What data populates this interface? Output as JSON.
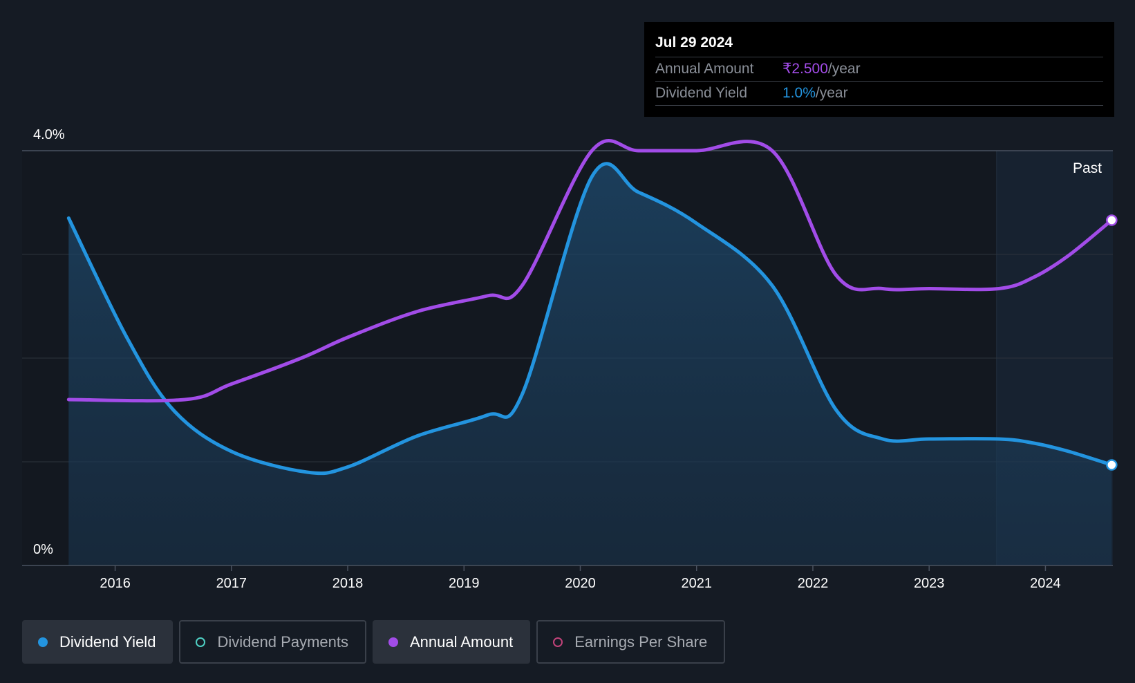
{
  "tooltip": {
    "date": "Jul 29 2024",
    "annual_amount_label": "Annual Amount",
    "annual_amount_value": "₹2.500",
    "dividend_yield_label": "Dividend Yield",
    "dividend_yield_value": "1.0%",
    "per_year": "/year"
  },
  "legend": [
    {
      "label": "Dividend Yield",
      "color": "#2394df",
      "active": true,
      "dot": "filled"
    },
    {
      "label": "Dividend Payments",
      "color": "#4fd1c5",
      "active": false,
      "dot": "hollow"
    },
    {
      "label": "Annual Amount",
      "color": "#a24ce8",
      "active": true,
      "dot": "filled"
    },
    {
      "label": "Earnings Per Share",
      "color": "#c2437a",
      "active": false,
      "dot": "hollow"
    }
  ],
  "colors": {
    "background": "#151b24",
    "plot_background": "#131820",
    "yield": "#2394df",
    "amount": "#a24ce8",
    "grid": "#2c333d"
  },
  "chart_data": {
    "type": "line",
    "y_axis": {
      "min": 0,
      "max": 4.0,
      "unit": "%",
      "tick_labels": [
        "0%",
        "4.0%"
      ],
      "gridlines": [
        0,
        1,
        2,
        3,
        4
      ]
    },
    "x_axis": {
      "ticks": [
        "2016",
        "2017",
        "2018",
        "2019",
        "2020",
        "2021",
        "2022",
        "2023",
        "2024"
      ]
    },
    "past_label": "Past",
    "past_region_start": 2023.58,
    "x_range": [
      2015.2,
      2024.58
    ],
    "series": [
      {
        "name": "Dividend Yield",
        "area": true,
        "points": [
          [
            2015.6,
            3.35
          ],
          [
            2016.1,
            2.2
          ],
          [
            2016.5,
            1.5
          ],
          [
            2017.0,
            1.1
          ],
          [
            2017.65,
            0.9
          ],
          [
            2018.0,
            0.95
          ],
          [
            2018.6,
            1.25
          ],
          [
            2019.2,
            1.45
          ],
          [
            2019.5,
            1.65
          ],
          [
            2020.1,
            3.75
          ],
          [
            2020.5,
            3.6
          ],
          [
            2021.0,
            3.3
          ],
          [
            2021.65,
            2.7
          ],
          [
            2022.2,
            1.5
          ],
          [
            2022.6,
            1.22
          ],
          [
            2023.0,
            1.22
          ],
          [
            2023.6,
            1.22
          ],
          [
            2023.9,
            1.18
          ],
          [
            2024.2,
            1.1
          ],
          [
            2024.57,
            0.97
          ]
        ]
      },
      {
        "name": "Annual Amount",
        "area": false,
        "points": [
          [
            2015.6,
            1.6
          ],
          [
            2016.6,
            1.6
          ],
          [
            2017.0,
            1.75
          ],
          [
            2017.6,
            2.0
          ],
          [
            2018.0,
            2.2
          ],
          [
            2018.6,
            2.45
          ],
          [
            2019.2,
            2.6
          ],
          [
            2019.5,
            2.7
          ],
          [
            2020.1,
            4.0
          ],
          [
            2020.5,
            4.0
          ],
          [
            2021.0,
            4.0
          ],
          [
            2021.65,
            4.0
          ],
          [
            2022.2,
            2.8
          ],
          [
            2022.6,
            2.67
          ],
          [
            2023.0,
            2.67
          ],
          [
            2023.6,
            2.67
          ],
          [
            2023.9,
            2.78
          ],
          [
            2024.2,
            2.99
          ],
          [
            2024.57,
            3.33
          ]
        ]
      }
    ]
  }
}
